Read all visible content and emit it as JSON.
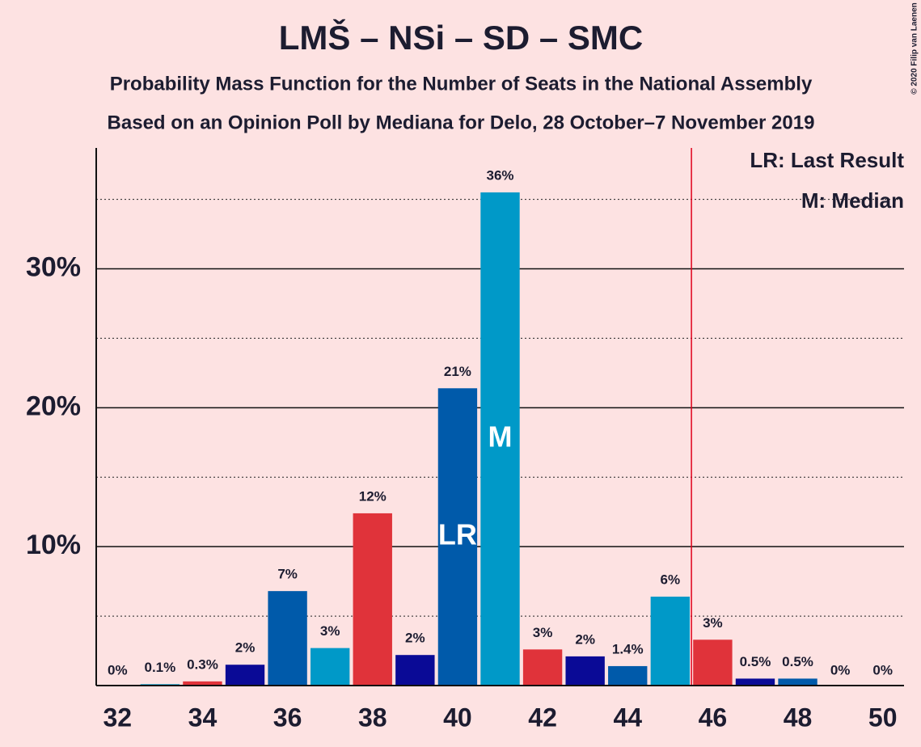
{
  "chart_data": {
    "type": "bar",
    "title": "LMŠ – NSi – SD – SMC",
    "subtitle": "Probability Mass Function for the Number of Seats in the National Assembly",
    "subtitle2": "Based on an Opinion Poll by Mediana for Delo, 28 October–7 November 2019",
    "copyright": "© 2020 Filip van Laenen",
    "x": [
      32,
      33,
      34,
      35,
      36,
      37,
      38,
      39,
      40,
      41,
      42,
      43,
      44,
      45,
      46,
      47,
      48,
      49,
      50
    ],
    "values": [
      0,
      0.1,
      0.3,
      1.5,
      6.8,
      2.7,
      12.4,
      2.2,
      21.4,
      35.5,
      2.6,
      2.1,
      1.4,
      6.4,
      3.3,
      0.5,
      0.5,
      0,
      0
    ],
    "value_labels": [
      "0%",
      "0.1%",
      "0.3%",
      "2%",
      "7%",
      "3%",
      "12%",
      "2%",
      "21%",
      "36%",
      "3%",
      "2%",
      "1.4%",
      "6%",
      "3%",
      "0.5%",
      "0.5%",
      "0%",
      "0%"
    ],
    "colors": [
      "#0099c8",
      "#0099c8",
      "#e0333a",
      "#0a0a96",
      "#005aaa",
      "#0099c8",
      "#e0333a",
      "#0a0a96",
      "#005aaa",
      "#0099c8",
      "#e0333a",
      "#0a0a96",
      "#005aaa",
      "#0099c8",
      "#e0333a",
      "#0a0a96",
      "#005aaa",
      "#0099c8",
      "#e0333a"
    ],
    "xlim": [
      31.5,
      50.5
    ],
    "xticks": [
      32,
      34,
      36,
      38,
      40,
      42,
      44,
      46,
      48,
      50
    ],
    "ylim": [
      0,
      38.7
    ],
    "yticks": [
      {
        "value": 10,
        "label": "10%"
      },
      {
        "value": 20,
        "label": "20%"
      },
      {
        "value": 30,
        "label": "30%"
      }
    ],
    "minor_yticks": [
      5,
      15,
      25,
      35
    ],
    "grid": true,
    "majority_line": 45.5,
    "majority_color": "#e0001a",
    "last_result": 40,
    "last_result_mark": "LR",
    "median": 41,
    "median_mark": "M",
    "legend": [
      "LR: Last Result",
      "M: Median"
    ],
    "legend_position": "upper right"
  }
}
